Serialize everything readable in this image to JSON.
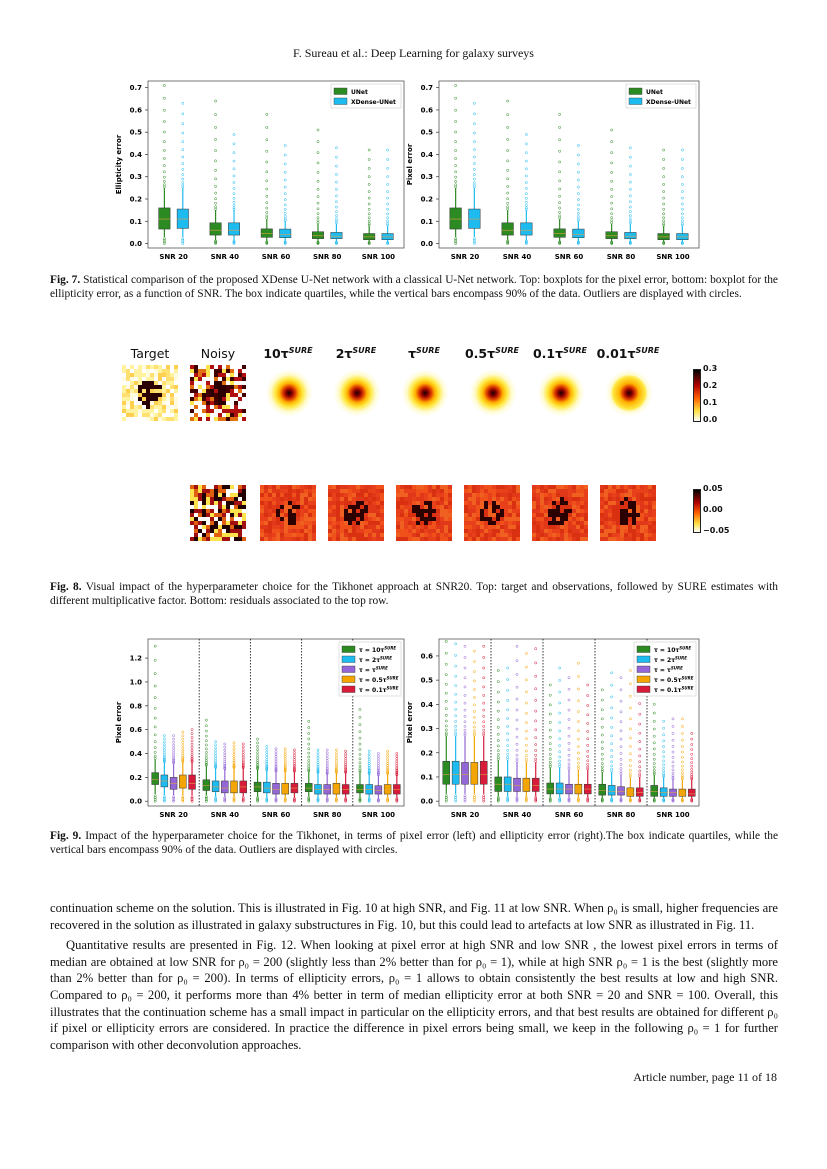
{
  "running_head": "F. Sureau et al.: Deep Learning for galaxy surveys",
  "fig7": {
    "caption_label": "Fig. 7.",
    "caption_text": " Statistical comparison of the proposed XDense U-Net network with a classical U-Net network. Top: boxplots for the pixel error, bottom: boxplot for the ellipticity error, as a function of SNR. The box indicate quartiles, while the vertical bars encompass 90% of the data. Outliers are displayed with circles."
  },
  "fig8": {
    "caption_label": "Fig. 8.",
    "caption_text": " Visual impact of the hyperparameter choice for the Tikhonet approach at SNR20. Top: target and observations, followed by SURE estimates with different multiplicative factor. Bottom: residuals associated to the top row.",
    "columns": [
      {
        "label": "Target",
        "sup": ""
      },
      {
        "label": "Noisy",
        "sup": ""
      },
      {
        "label": "10τ",
        "sup": "SURE"
      },
      {
        "label": "2τ",
        "sup": "SURE"
      },
      {
        "label": "τ",
        "sup": "SURE"
      },
      {
        "label": "0.5τ",
        "sup": "SURE"
      },
      {
        "label": "0.1τ",
        "sup": "SURE"
      },
      {
        "label": "0.01τ",
        "sup": "SURE"
      }
    ],
    "colorbar_top": [
      "0.3",
      "0.2",
      "0.1",
      "0.0"
    ],
    "colorbar_bottom": [
      "0.05",
      "0.00",
      "−0.05"
    ]
  },
  "fig9": {
    "caption_label": "Fig. 9.",
    "caption_text": " Impact of the hyperparameter choice for the Tikhonet, in terms of pixel error (left) and ellipticity error (right).The box indicate quartiles, while the vertical bars encompass 90% of the data. Outliers are displayed with circles."
  },
  "chart_data": [
    {
      "type": "boxplot",
      "figure": "Fig. 7 left",
      "ylabel": "Ellipticity error",
      "ylim": [
        -0.02,
        0.73
      ],
      "yticks": [
        "0.0",
        "0.1",
        "0.2",
        "0.3",
        "0.4",
        "0.5",
        "0.6",
        "0.7"
      ],
      "grid": false,
      "legend": "top-right",
      "separators": false,
      "categories": [
        "SNR 20",
        "SNR 40",
        "SNR 60",
        "SNR 80",
        "SNR 100"
      ],
      "stats_order": [
        "whisker_low",
        "q1",
        "median",
        "q3",
        "whisker_high",
        "max_outlier"
      ],
      "series": [
        {
          "name": "UNet",
          "sup": "",
          "color": "#2b8a22",
          "values": [
            [
              0.03,
              0.065,
              0.11,
              0.16,
              0.25,
              0.71
            ],
            [
              0.015,
              0.038,
              0.06,
              0.093,
              0.15,
              0.64
            ],
            [
              0.01,
              0.028,
              0.045,
              0.066,
              0.11,
              0.58
            ],
            [
              0.008,
              0.022,
              0.035,
              0.053,
              0.09,
              0.51
            ],
            [
              0.006,
              0.017,
              0.03,
              0.045,
              0.08,
              0.42
            ]
          ]
        },
        {
          "name": "XDense-UNet",
          "sup": "",
          "color": "#1dbbf0",
          "values": [
            [
              0.03,
              0.068,
              0.11,
              0.155,
              0.25,
              0.63
            ],
            [
              0.015,
              0.038,
              0.06,
              0.093,
              0.15,
              0.49
            ],
            [
              0.01,
              0.026,
              0.04,
              0.065,
              0.1,
              0.44
            ],
            [
              0.008,
              0.022,
              0.033,
              0.05,
              0.09,
              0.43
            ],
            [
              0.006,
              0.017,
              0.03,
              0.045,
              0.08,
              0.42
            ]
          ]
        }
      ]
    },
    {
      "type": "boxplot",
      "figure": "Fig. 7 right",
      "ylabel": "Pixel error",
      "ylim": [
        -0.02,
        0.73
      ],
      "yticks": [
        "0.0",
        "0.1",
        "0.2",
        "0.3",
        "0.4",
        "0.5",
        "0.6",
        "0.7"
      ],
      "grid": false,
      "legend": "top-right",
      "separators": false,
      "categories": [
        "SNR 20",
        "SNR 40",
        "SNR 60",
        "SNR 80",
        "SNR 100"
      ],
      "stats_order": [
        "whisker_low",
        "q1",
        "median",
        "q3",
        "whisker_high",
        "max_outlier"
      ],
      "series": [
        {
          "name": "UNet",
          "sup": "",
          "color": "#2b8a22",
          "values": [
            [
              0.03,
              0.065,
              0.11,
              0.16,
              0.25,
              0.71
            ],
            [
              0.015,
              0.038,
              0.06,
              0.093,
              0.15,
              0.64
            ],
            [
              0.01,
              0.028,
              0.045,
              0.066,
              0.11,
              0.58
            ],
            [
              0.008,
              0.022,
              0.035,
              0.053,
              0.09,
              0.51
            ],
            [
              0.006,
              0.017,
              0.03,
              0.045,
              0.08,
              0.42
            ]
          ]
        },
        {
          "name": "XDense-UNet",
          "sup": "",
          "color": "#1dbbf0",
          "values": [
            [
              0.03,
              0.068,
              0.11,
              0.155,
              0.25,
              0.63
            ],
            [
              0.015,
              0.038,
              0.06,
              0.093,
              0.15,
              0.49
            ],
            [
              0.01,
              0.026,
              0.04,
              0.065,
              0.1,
              0.44
            ],
            [
              0.008,
              0.022,
              0.033,
              0.05,
              0.09,
              0.43
            ],
            [
              0.006,
              0.017,
              0.03,
              0.045,
              0.08,
              0.42
            ]
          ]
        }
      ]
    },
    {
      "type": "boxplot",
      "figure": "Fig. 9 left",
      "ylabel": "Pixel error",
      "ylim": [
        -0.04,
        1.36
      ],
      "yticks": [
        "0.0",
        "0.2",
        "0.4",
        "0.6",
        "0.8",
        "1.0",
        "1.2"
      ],
      "grid": false,
      "legend": "top-right",
      "separators": true,
      "categories": [
        "SNR 20",
        "SNR 40",
        "SNR 60",
        "SNR 80",
        "SNR 100"
      ],
      "stats_order": [
        "whisker_low",
        "q1",
        "median",
        "q3",
        "whisker_high",
        "max_outlier"
      ],
      "series": [
        {
          "name": "τ = 10τ",
          "sup": "SURE",
          "color": "#2b8a22",
          "values": [
            [
              0.06,
              0.14,
              0.18,
              0.24,
              0.35,
              1.3
            ],
            [
              0.05,
              0.09,
              0.13,
              0.18,
              0.3,
              0.68
            ],
            [
              0.04,
              0.08,
              0.12,
              0.16,
              0.27,
              0.52
            ],
            [
              0.04,
              0.08,
              0.11,
              0.15,
              0.25,
              0.67
            ],
            [
              0.03,
              0.07,
              0.1,
              0.14,
              0.24,
              0.77
            ]
          ]
        },
        {
          "name": "τ = 2τ",
          "sup": "SURE",
          "color": "#1dbbf0",
          "values": [
            [
              0.05,
              0.12,
              0.17,
              0.22,
              0.33,
              0.55
            ],
            [
              0.04,
              0.08,
              0.12,
              0.17,
              0.28,
              0.5
            ],
            [
              0.03,
              0.07,
              0.11,
              0.16,
              0.26,
              0.46
            ],
            [
              0.03,
              0.06,
              0.1,
              0.14,
              0.24,
              0.43
            ],
            [
              0.03,
              0.06,
              0.1,
              0.14,
              0.23,
              0.42
            ]
          ]
        },
        {
          "name": "τ = τ",
          "sup": "SURE",
          "color": "#9467d6",
          "values": [
            [
              0.05,
              0.1,
              0.15,
              0.2,
              0.32,
              0.55
            ],
            [
              0.04,
              0.07,
              0.11,
              0.17,
              0.27,
              0.48
            ],
            [
              0.03,
              0.06,
              0.1,
              0.15,
              0.25,
              0.44
            ],
            [
              0.03,
              0.06,
              0.1,
              0.14,
              0.23,
              0.43
            ],
            [
              0.02,
              0.06,
              0.09,
              0.13,
              0.22,
              0.4
            ]
          ]
        },
        {
          "name": "τ = 0.5τ",
          "sup": "SURE",
          "color": "#f5a500",
          "values": [
            [
              0.05,
              0.11,
              0.16,
              0.22,
              0.33,
              0.58
            ],
            [
              0.04,
              0.07,
              0.11,
              0.17,
              0.28,
              0.49
            ],
            [
              0.03,
              0.06,
              0.1,
              0.15,
              0.25,
              0.44
            ],
            [
              0.03,
              0.06,
              0.1,
              0.15,
              0.24,
              0.43
            ],
            [
              0.03,
              0.06,
              0.1,
              0.14,
              0.23,
              0.42
            ]
          ]
        },
        {
          "name": "τ = 0.1τ",
          "sup": "SURE",
          "color": "#d81b3b",
          "values": [
            [
              0.05,
              0.1,
              0.15,
              0.22,
              0.33,
              0.6
            ],
            [
              0.04,
              0.07,
              0.12,
              0.17,
              0.28,
              0.48
            ],
            [
              0.03,
              0.07,
              0.11,
              0.15,
              0.25,
              0.43
            ],
            [
              0.03,
              0.06,
              0.1,
              0.14,
              0.24,
              0.42
            ],
            [
              0.03,
              0.06,
              0.1,
              0.14,
              0.22,
              0.4
            ]
          ]
        }
      ]
    },
    {
      "type": "boxplot",
      "figure": "Fig. 9 right",
      "ylabel": "Pixel error",
      "ylim": [
        -0.02,
        0.67
      ],
      "yticks": [
        "0.0",
        "0.1",
        "0.2",
        "0.3",
        "0.4",
        "0.5",
        "0.6"
      ],
      "grid": false,
      "legend": "top-right",
      "separators": true,
      "categories": [
        "SNR 20",
        "SNR 40",
        "SNR 60",
        "SNR 80",
        "SNR 100"
      ],
      "stats_order": [
        "whisker_low",
        "q1",
        "median",
        "q3",
        "whisker_high",
        "max_outlier"
      ],
      "series": [
        {
          "name": "τ = 10τ",
          "sup": "SURE",
          "color": "#2b8a22",
          "values": [
            [
              0.03,
              0.07,
              0.11,
              0.165,
              0.27,
              0.66
            ],
            [
              0.02,
              0.04,
              0.07,
              0.1,
              0.17,
              0.54
            ],
            [
              0.015,
              0.03,
              0.05,
              0.075,
              0.14,
              0.48
            ],
            [
              0.012,
              0.025,
              0.045,
              0.07,
              0.12,
              0.46
            ],
            [
              0.01,
              0.02,
              0.04,
              0.065,
              0.11,
              0.4
            ]
          ]
        },
        {
          "name": "τ = 2τ",
          "sup": "SURE",
          "color": "#1dbbf0",
          "values": [
            [
              0.03,
              0.07,
              0.11,
              0.165,
              0.27,
              0.65
            ],
            [
              0.02,
              0.04,
              0.07,
              0.1,
              0.17,
              0.55
            ],
            [
              0.015,
              0.03,
              0.05,
              0.075,
              0.14,
              0.55
            ],
            [
              0.012,
              0.025,
              0.04,
              0.065,
              0.12,
              0.53
            ],
            [
              0.01,
              0.02,
              0.035,
              0.055,
              0.1,
              0.33
            ]
          ]
        },
        {
          "name": "τ = τ",
          "sup": "SURE",
          "color": "#9467d6",
          "values": [
            [
              0.03,
              0.07,
              0.11,
              0.16,
              0.27,
              0.64
            ],
            [
              0.02,
              0.04,
              0.065,
              0.095,
              0.16,
              0.64
            ],
            [
              0.015,
              0.03,
              0.05,
              0.07,
              0.13,
              0.51
            ],
            [
              0.012,
              0.025,
              0.04,
              0.06,
              0.11,
              0.51
            ],
            [
              0.01,
              0.02,
              0.035,
              0.05,
              0.09,
              0.34
            ]
          ]
        },
        {
          "name": "τ = 0.5τ",
          "sup": "SURE",
          "color": "#f5a500",
          "values": [
            [
              0.03,
              0.07,
              0.11,
              0.16,
              0.27,
              0.62
            ],
            [
              0.02,
              0.04,
              0.065,
              0.095,
              0.16,
              0.61
            ],
            [
              0.015,
              0.03,
              0.05,
              0.07,
              0.13,
              0.57
            ],
            [
              0.01,
              0.02,
              0.035,
              0.055,
              0.1,
              0.54
            ],
            [
              0.01,
              0.02,
              0.03,
              0.05,
              0.09,
              0.34
            ]
          ]
        },
        {
          "name": "τ = 0.1τ",
          "sup": "SURE",
          "color": "#d81b3b",
          "values": [
            [
              0.03,
              0.07,
              0.11,
              0.165,
              0.27,
              0.64
            ],
            [
              0.02,
              0.04,
              0.065,
              0.095,
              0.16,
              0.63
            ],
            [
              0.015,
              0.03,
              0.05,
              0.07,
              0.13,
              0.48
            ],
            [
              0.01,
              0.02,
              0.035,
              0.055,
              0.1,
              0.5
            ],
            [
              0.01,
              0.02,
              0.03,
              0.05,
              0.09,
              0.28
            ]
          ]
        }
      ]
    }
  ],
  "body": {
    "paragraph1": "continuation scheme on the solution. This is illustrated in Fig. 10 at high SNR, and Fig. 11 at low SNR. When ρ₀ is small, higher frequencies are recovered in the solution as illustrated in galaxy substructures in Fig. 10, but this could lead to artefacts at low SNR as illustrated in Fig. 11.",
    "paragraph2": "Quantitative results are presented in Fig. 12. When looking at pixel error at high SNR and low SNR , the lowest pixel errors in terms of median are obtained at low SNR for ρ₀ = 200 (slightly less than 2% better than for ρ₀ = 1), while at high SNR ρ₀ = 1 is the best (slightly more than 2% better than for ρ₀ = 200). In terms of ellipticity errors, ρ₀ = 1 allows to obtain consistently the best results at low and high SNR. Compared to ρ₀ = 200, it performs more than 4% better in term of median ellipticity error at both SNR = 20 and SNR = 100. Overall, this illustrates that the continuation scheme has a small impact in particular on the ellipticity errors, and that best results are obtained for different ρ₀ if pixel or ellipticity errors are considered. In practice the difference in pixel errors being small, we keep in the following ρ₀ = 1 for further comparison with other deconvolution approaches."
  },
  "footer": "Article number, page 11 of 18"
}
